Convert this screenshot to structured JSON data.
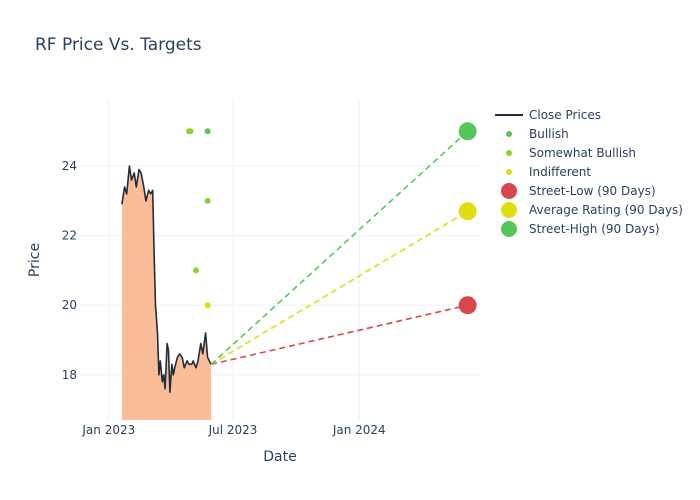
{
  "chart_data": {
    "type": "line",
    "title": "RF Price Vs. Targets",
    "xlabel": "Date",
    "ylabel": "Price",
    "x_range": [
      "2022-11-20",
      "2024-06-25"
    ],
    "y_range": [
      16.7,
      25.9
    ],
    "y_ticks": [
      18,
      20,
      22,
      24
    ],
    "x_ticks": [
      {
        "date": "2023-01-01",
        "label": "Jan 2023"
      },
      {
        "date": "2023-07-01",
        "label": "Jul 2023"
      },
      {
        "date": "2024-01-01",
        "label": "Jan 2024"
      }
    ],
    "grid": true,
    "legend_position": "right",
    "close_prices": {
      "name": "Close Prices",
      "color": "#1f2d3d",
      "fill_color": "#fbbc98",
      "dates": [
        "2023-01-20",
        "2023-01-24",
        "2023-01-27",
        "2023-01-31",
        "2023-02-03",
        "2023-02-07",
        "2023-02-10",
        "2023-02-14",
        "2023-02-17",
        "2023-02-21",
        "2023-02-24",
        "2023-02-28",
        "2023-03-03",
        "2023-03-06",
        "2023-03-08",
        "2023-03-10",
        "2023-03-13",
        "2023-03-15",
        "2023-03-17",
        "2023-03-20",
        "2023-03-22",
        "2023-03-24",
        "2023-03-27",
        "2023-03-29",
        "2023-03-31",
        "2023-04-03",
        "2023-04-05",
        "2023-04-07",
        "2023-04-11",
        "2023-04-14",
        "2023-04-18",
        "2023-04-21",
        "2023-04-25",
        "2023-04-28",
        "2023-05-02",
        "2023-05-04",
        "2023-05-08",
        "2023-05-11",
        "2023-05-15",
        "2023-05-18",
        "2023-05-22",
        "2023-05-25",
        "2023-05-30"
      ],
      "values": [
        22.9,
        23.4,
        23.2,
        24.0,
        23.6,
        23.8,
        23.4,
        23.9,
        23.8,
        23.4,
        23.0,
        23.3,
        23.2,
        23.3,
        21.5,
        20.0,
        19.2,
        18.0,
        18.4,
        17.8,
        18.0,
        17.6,
        18.9,
        18.7,
        17.5,
        18.3,
        18.0,
        18.2,
        18.5,
        18.6,
        18.5,
        18.2,
        18.4,
        18.3,
        18.3,
        18.4,
        18.2,
        18.4,
        18.9,
        18.6,
        19.2,
        18.5,
        18.3
      ]
    },
    "analyst_ratings": [
      {
        "name": "Bullish",
        "color": "#5cc35c",
        "points": [
          {
            "date": "2023-05-25",
            "value": 25.0
          }
        ]
      },
      {
        "name": "Somewhat Bullish",
        "color": "#8ed12f",
        "points": [
          {
            "date": "2023-04-28",
            "value": 25.0
          },
          {
            "date": "2023-04-30",
            "value": 25.0
          },
          {
            "date": "2023-05-25",
            "value": 23.0
          },
          {
            "date": "2023-05-08",
            "value": 21.0
          }
        ]
      },
      {
        "name": "Indifferent",
        "color": "#dede10",
        "points": [
          {
            "date": "2023-05-25",
            "value": 20.0
          }
        ]
      }
    ],
    "targets": [
      {
        "name": "Street-Low (90 Days)",
        "color": "#d8474e",
        "date": "2024-06-07",
        "value": 20.0
      },
      {
        "name": "Average Rating (90 Days)",
        "color": "#dede10",
        "date": "2024-06-07",
        "value": 22.7
      },
      {
        "name": "Street-High (90 Days)",
        "color": "#55c75a",
        "date": "2024-06-07",
        "value": 25.0
      }
    ],
    "target_lines_start": {
      "date": "2023-05-30",
      "value": 18.3
    }
  }
}
